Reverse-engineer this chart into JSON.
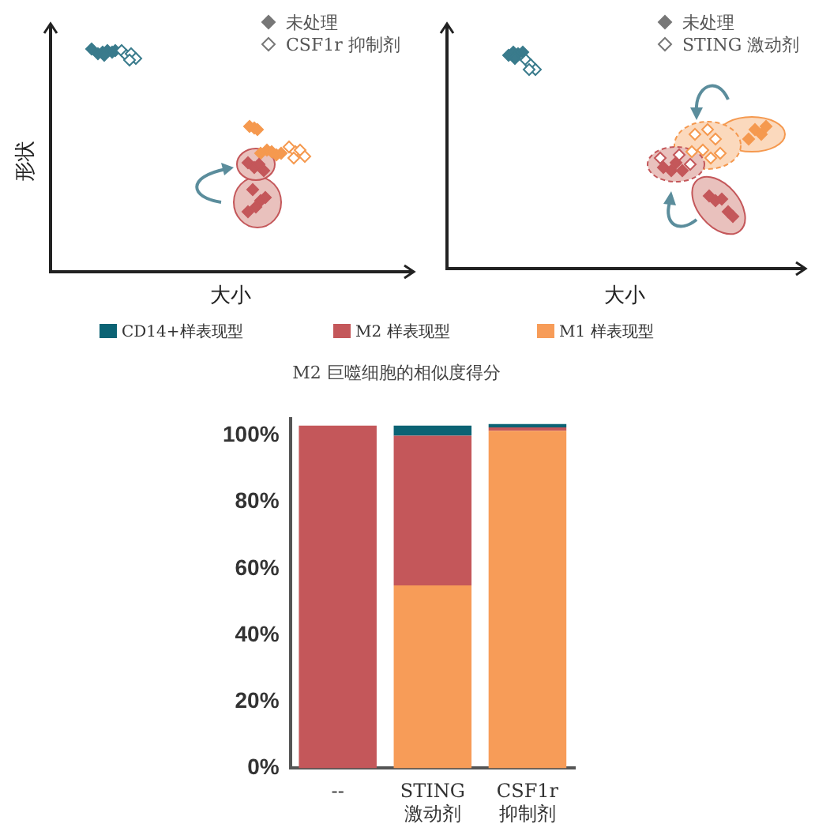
{
  "chart_data": [
    {
      "type": "other",
      "xlabel": "大小",
      "ylabel": "形状",
      "annotations": [
        "未处理",
        "CSF1r 抑制剂"
      ]
    },
    {
      "type": "other",
      "xlabel": "大小",
      "annotations": [
        "未处理",
        "STING 激动剂"
      ]
    },
    {
      "type": "bar",
      "title": "M2 巨噬细胞的相似度得分",
      "categories": [
        "--",
        "STING 激动剂",
        "CSF1r 抑制剂"
      ],
      "stacked": true,
      "legend": "top",
      "ylim": [
        0,
        105
      ],
      "yticks": [
        {
          "value": 0,
          "label": "0%"
        },
        {
          "value": 20,
          "label": "20%"
        },
        {
          "value": 40,
          "label": "40%"
        },
        {
          "value": 60,
          "label": "60%"
        },
        {
          "value": 80,
          "label": "80%"
        },
        {
          "value": 100,
          "label": "100%"
        }
      ],
      "series": [
        {
          "name": "M1 样表现型",
          "color": "#f79c58",
          "values": [
            0,
            55,
            101.5
          ]
        },
        {
          "name": "M2 样表现型",
          "color": "#c4575a",
          "values": [
            103,
            45,
            1
          ]
        },
        {
          "name": "CD14+样表现型",
          "color": "#0b6374",
          "values": [
            0,
            3,
            1
          ]
        }
      ]
    }
  ]
}
